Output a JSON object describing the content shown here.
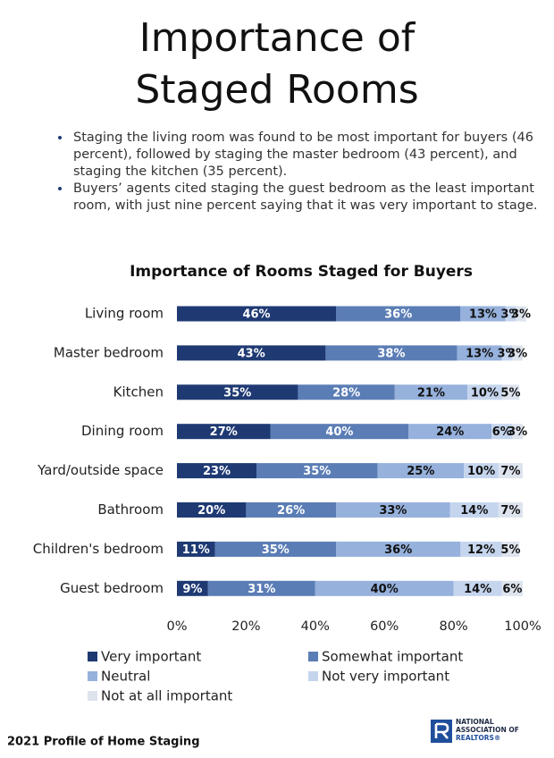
{
  "header": {
    "title": "Importance of Staged Rooms"
  },
  "bullets": [
    "Staging the living room was found to be most important for buyers (46 percent), followed by staging the master bedroom (43 percent), and staging the kitchen (35 percent).",
    "Buyers’ agents cited staging the guest bedroom as the least important room, with just nine percent saying that it was very important to stage."
  ],
  "chart_data": {
    "type": "stacked-bar-horizontal",
    "title": "Importance of Rooms Staged for Buyers",
    "categories": [
      "Living room",
      "Master bedroom",
      "Kitchen",
      "Dining room",
      "Yard/outside space",
      "Bathroom",
      "Children's bedroom",
      "Guest bedroom"
    ],
    "series": [
      {
        "name": "Very important",
        "color": "#1f3a73",
        "values": [
          46,
          43,
          35,
          27,
          23,
          20,
          11,
          9
        ],
        "value_labels": [
          "46%",
          "43%",
          "35%",
          "27%",
          "23%",
          "20%",
          "11%",
          "9%"
        ]
      },
      {
        "name": "Somewhat important",
        "color": "#5b7db5",
        "values": [
          36,
          38,
          28,
          40,
          35,
          26,
          35,
          31
        ],
        "value_labels": [
          "36%",
          "38%",
          "28%",
          "40%",
          "35%",
          "26%",
          "35%",
          "31%"
        ]
      },
      {
        "name": "Neutral",
        "color": "#96b1dc",
        "values": [
          13,
          13,
          21,
          24,
          25,
          33,
          36,
          40
        ],
        "value_labels": [
          "13%",
          "13%",
          "21%",
          "24%",
          "25%",
          "33%",
          "36%",
          "40%"
        ]
      },
      {
        "name": "Not very important",
        "color": "#c5d5ee",
        "values": [
          3,
          3,
          10,
          6,
          10,
          14,
          12,
          14
        ],
        "value_labels": [
          "3%",
          "3%",
          "10%",
          "6%",
          "10%",
          "14%",
          "12%",
          "14%"
        ]
      },
      {
        "name": "Not at all important",
        "color": "#dde4ee",
        "values": [
          3,
          3,
          5,
          3,
          7,
          7,
          5,
          6
        ],
        "value_labels": [
          "3%",
          "3%",
          "5%",
          "3%",
          "7%",
          "7%",
          "5%",
          "6%"
        ]
      }
    ],
    "xlim": [
      0,
      100
    ],
    "xticks": [
      {
        "value": 0,
        "label": "0%"
      },
      {
        "value": 20,
        "label": "20%"
      },
      {
        "value": 40,
        "label": "40%"
      },
      {
        "value": 60,
        "label": "60%"
      },
      {
        "value": 80,
        "label": "80%"
      },
      {
        "value": 100,
        "label": "100%"
      }
    ]
  },
  "footer": {
    "text": "2021 Profile of Home Staging",
    "logo": [
      "NATIONAL",
      "ASSOCIATION OF",
      "REALTORS®"
    ]
  }
}
